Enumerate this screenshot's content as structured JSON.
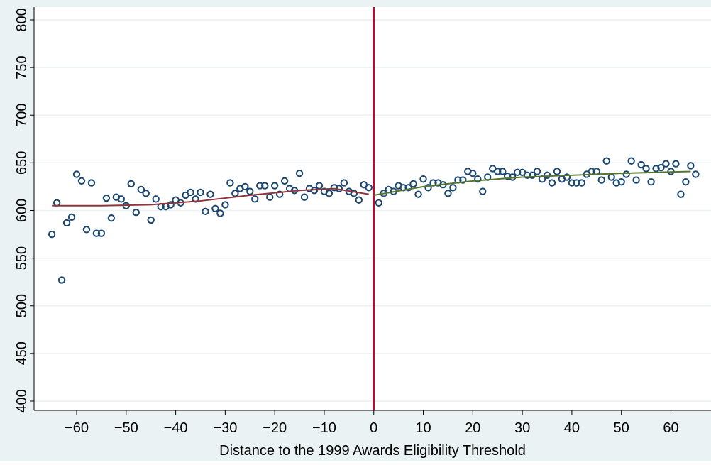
{
  "chart_data": {
    "type": "scatter",
    "x_label": "Distance to the 1999 Awards Eligibility Threshold",
    "xlim": [
      -68.6,
      68.1
    ],
    "ylim": [
      390.3,
      813.4
    ],
    "xticks": [
      {
        "value": -60,
        "label": "−60"
      },
      {
        "value": -50,
        "label": "−50"
      },
      {
        "value": -40,
        "label": "−40"
      },
      {
        "value": -30,
        "label": "−30"
      },
      {
        "value": -20,
        "label": "−20"
      },
      {
        "value": -10,
        "label": "−10"
      },
      0,
      10,
      20,
      30,
      40,
      50,
      60
    ],
    "yticks": [
      400,
      450,
      500,
      550,
      600,
      650,
      700,
      750,
      800
    ],
    "grid": true,
    "reference_line": {
      "x": 0,
      "color": "#c10534"
    },
    "series": [
      {
        "type": "scatter",
        "color": "#1a476f",
        "x": [
          -65,
          -64,
          -63,
          -62,
          -61,
          -60,
          -59,
          -58,
          -57,
          -56,
          -55,
          -54,
          -53,
          -52,
          -51,
          -50,
          -49,
          -48,
          -47,
          -46,
          -45,
          -44,
          -43,
          -42,
          -41,
          -40,
          -39,
          -38,
          -37,
          -36,
          -35,
          -34,
          -33,
          -32,
          -31,
          -30,
          -29,
          -28,
          -27,
          -26,
          -25,
          -24,
          -23,
          -22,
          -21,
          -20,
          -19,
          -18,
          -17,
          -16,
          -15,
          -14,
          -13,
          -12,
          -11,
          -10,
          -9,
          -8,
          -7,
          -6,
          -5,
          -4,
          -3,
          -2,
          -1
        ],
        "values": [
          575,
          608,
          527,
          587,
          593,
          638,
          631,
          580,
          629,
          576,
          576,
          613,
          592,
          614,
          612,
          605,
          628,
          598,
          622,
          618,
          590,
          612,
          604,
          604,
          606,
          611,
          608,
          616,
          619,
          612,
          619,
          599,
          617,
          602,
          597,
          606,
          629,
          618,
          623,
          625,
          620,
          612,
          626,
          626,
          614,
          626,
          617,
          631,
          623,
          621,
          639,
          614,
          623,
          621,
          626,
          620,
          618,
          624,
          623,
          629,
          620,
          618,
          611,
          627,
          624
        ]
      },
      {
        "type": "scatter",
        "color": "#1a476f",
        "x": [
          1,
          2,
          3,
          4,
          5,
          6,
          7,
          8,
          9,
          10,
          11,
          12,
          13,
          14,
          15,
          16,
          17,
          18,
          19,
          20,
          21,
          22,
          23,
          24,
          25,
          26,
          27,
          28,
          29,
          30,
          31,
          32,
          33,
          34,
          35,
          36,
          37,
          38,
          39,
          40,
          41,
          42,
          43,
          44,
          45,
          46,
          47,
          48,
          49,
          50,
          51,
          52,
          53,
          54,
          55,
          56,
          57,
          58,
          59,
          60,
          61,
          62,
          63,
          64,
          65
        ],
        "values": [
          608,
          618,
          622,
          620,
          626,
          624,
          624,
          628,
          617,
          633,
          624,
          629,
          629,
          627,
          618,
          624,
          632,
          632,
          641,
          639,
          633,
          620,
          635,
          644,
          641,
          641,
          636,
          635,
          640,
          640,
          637,
          637,
          641,
          633,
          637,
          629,
          641,
          633,
          635,
          629,
          629,
          629,
          638,
          641,
          641,
          632,
          652,
          635,
          629,
          630,
          638,
          652,
          632,
          648,
          644,
          630,
          644,
          645,
          649,
          641,
          649,
          617,
          630,
          647,
          638
        ]
      },
      {
        "type": "line",
        "color": "#90353b",
        "x": [
          -65,
          -55,
          -45,
          -35,
          -25,
          -15,
          -8,
          -1
        ],
        "values": [
          605,
          605,
          606,
          610,
          616,
          621,
          623,
          617
        ]
      },
      {
        "type": "line",
        "color": "#55752f",
        "x": [
          0,
          10,
          20,
          30,
          40,
          50,
          64
        ],
        "values": [
          616,
          625,
          631,
          635,
          637,
          639,
          641
        ]
      }
    ]
  }
}
